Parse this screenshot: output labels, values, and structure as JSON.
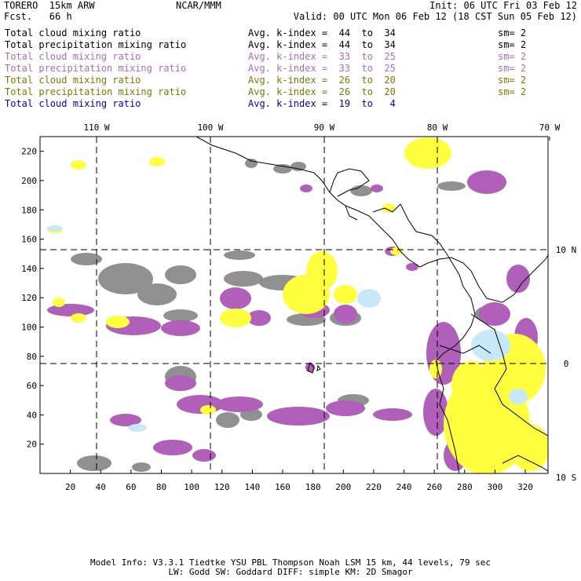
{
  "header": {
    "model": "TORERO  15km ARW",
    "forecast": "Fcst.   66 h",
    "center": "NCAR/MMM",
    "init": "Init: 06 UTC Fri 03 Feb 12",
    "valid": "Valid: 00 UTC Mon 06 Feb 12 (18 CST Sun 05 Feb 12)"
  },
  "legend": [
    {
      "name": "Total cloud mixing ratio",
      "avg": "Avg. k-index =  44  to  34",
      "sm": "sm= 2",
      "color": "#000000"
    },
    {
      "name": "Total precipitation mixing ratio",
      "avg": "Avg. k-index =  44  to  34",
      "sm": "sm= 2",
      "color": "#000000"
    },
    {
      "name": "Total cloud mixing ratio",
      "avg": "Avg. k-index =  33  to  25",
      "sm": "sm= 2",
      "color": "#b06ab8"
    },
    {
      "name": "Total precipitation mixing ratio",
      "avg": "Avg. k-index =  33  to  25",
      "sm": "sm= 2",
      "color": "#b06ab8"
    },
    {
      "name": "Total cloud mixing ratio",
      "avg": "Avg. k-index =  26  to  20",
      "sm": "sm= 2",
      "color": "#7a7a00"
    },
    {
      "name": "Total precipitation mixing ratio",
      "avg": "Avg. k-index =  26  to  20",
      "sm": "sm= 2",
      "color": "#7a7a00"
    },
    {
      "name": "Total cloud mixing ratio",
      "avg": "Avg. k-index =  19  to   4",
      "sm": "",
      "color": "#0000cc"
    }
  ],
  "map": {
    "top_labels": [
      "110 W",
      "100 W",
      "90 W",
      "80 W",
      "70 W"
    ],
    "right_labels": [
      "10 N",
      "0",
      "10 S"
    ],
    "y_ticks": [
      "220",
      "200",
      "180",
      "160",
      "140",
      "120",
      "100",
      "80",
      "60",
      "40",
      "20"
    ],
    "x_ticks": [
      "20",
      "40",
      "60",
      "80",
      "100",
      "120",
      "140",
      "160",
      "180",
      "200",
      "220",
      "240",
      "260",
      "280",
      "300",
      "320"
    ],
    "colors": {
      "gray": "#909090",
      "purple": "#b060b8",
      "yellow": "#ffff40",
      "lightblue": "#c8e8f8",
      "coast": "#000000"
    }
  },
  "footer": {
    "line1": "Model Info: V3.3.1   Tiedtke YSU PBL  Thompson    Noah LSM  15 km,   44 levels,   79 sec",
    "line2": "LW: Godd SW: Goddard DIFF: simple KM: 2D Smagor"
  }
}
